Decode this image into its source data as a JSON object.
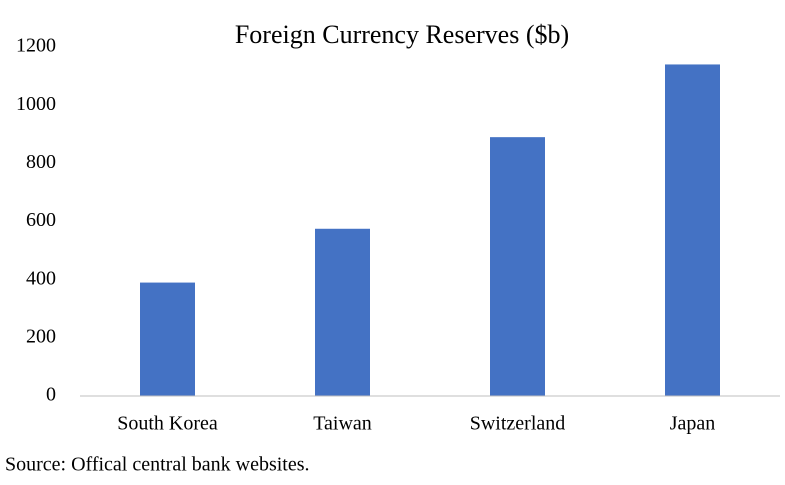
{
  "chart_data": {
    "type": "bar",
    "title": "Foreign Currency Reserves ($b)",
    "categories": [
      "South Korea",
      "Taiwan",
      "Switzerland",
      "Japan"
    ],
    "values": [
      390,
      575,
      890,
      1140
    ],
    "color": "#4472c4",
    "ylim": [
      0,
      1200
    ],
    "yticks": [
      0,
      200,
      400,
      600,
      800,
      1000,
      1200
    ],
    "grid": false,
    "source": "Source: Offical central bank websites."
  }
}
